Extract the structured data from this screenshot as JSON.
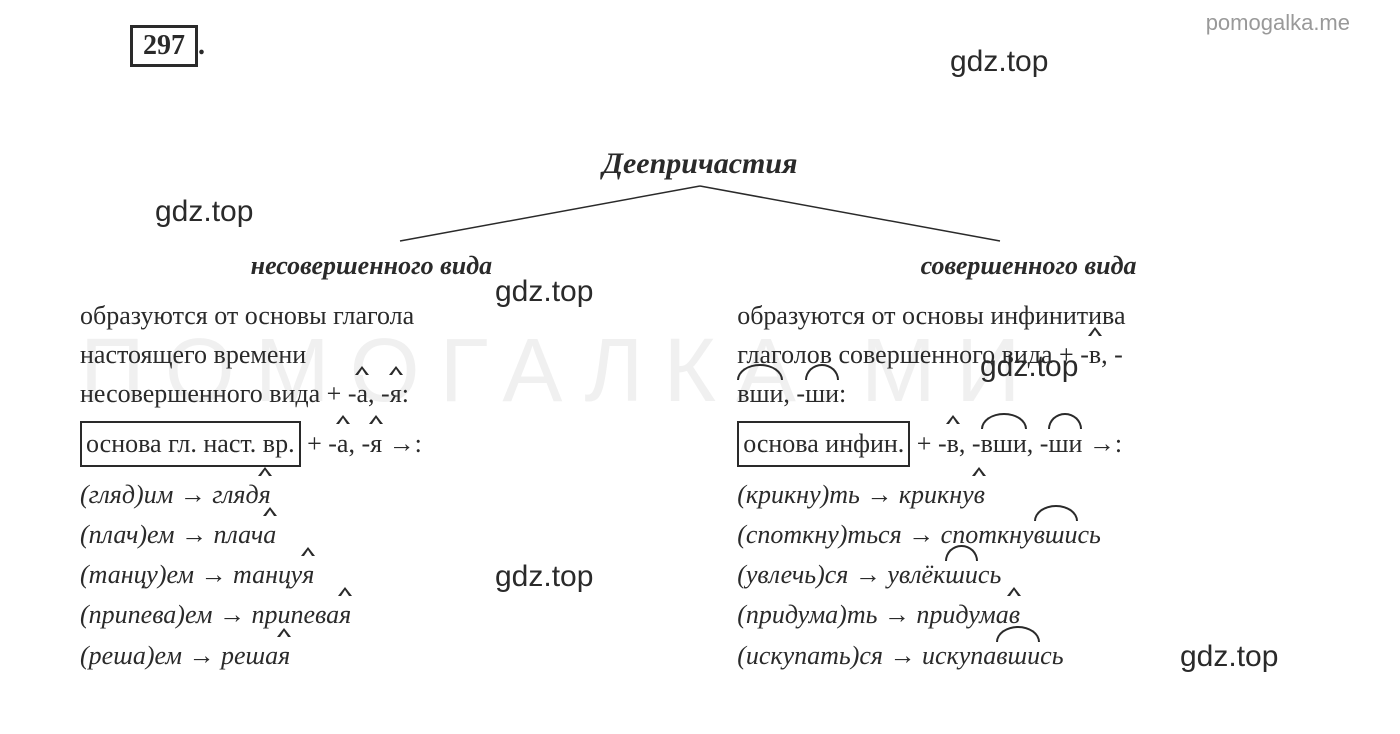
{
  "watermark_top": "pomogalka.me",
  "exercise_number": "297",
  "title": "Деепричастия",
  "overlay_texts": [
    "gdz.top",
    "gdz.top",
    "gdz.top",
    "gdz.top",
    "gdz.top",
    "gdz.top"
  ],
  "bg_watermark": "ПОМОГАЛКА.МИ",
  "left_column": {
    "title": "несовершенного вида",
    "desc_line1": "образуются от основы глагола",
    "desc_line2": "настоящего времени",
    "desc_line3_part1": "несовершенного вида + -",
    "desc_line3_suffix1": "а",
    "desc_line3_part2": ", -",
    "desc_line3_suffix2": "я",
    "desc_line3_part3": ":",
    "formula_boxed": "основа гл. наст. вр.",
    "formula_part1": " + -",
    "formula_suffix1": "а",
    "formula_part2": ", -",
    "formula_suffix2": "я",
    "formula_part3": " →:",
    "examples": [
      {
        "base": "(гляд)им → гляд",
        "suffix": "я",
        "tail": ""
      },
      {
        "base": "(плач)ем → плач",
        "suffix": "а",
        "tail": ""
      },
      {
        "base": "(танцу)ем → танцу",
        "suffix": "я",
        "tail": ""
      },
      {
        "base": "(припева)ем → припева",
        "suffix": "я",
        "tail": ""
      },
      {
        "base": "(реша)ем → реша",
        "suffix": "я",
        "tail": ""
      }
    ]
  },
  "right_column": {
    "title": "совершенного вида",
    "desc_line1": "образуются от основы инфинитива",
    "desc_line2_part1": "глаголов совершенного вида + -",
    "desc_line2_suffix1": "в",
    "desc_line2_part2": ", -",
    "desc_line3_suffix1": "вши",
    "desc_line3_part1": ", -",
    "desc_line3_suffix2": "ши",
    "desc_line3_part2": ":",
    "formula_boxed": "основа инфин.",
    "formula_part1": " + -",
    "formula_suffix1": "в",
    "formula_part2": ", -",
    "formula_suffix2": "вши",
    "formula_part3": ", -",
    "formula_suffix3": "ши",
    "formula_part4": " →:",
    "examples": [
      {
        "base": "(крикну)ть → крикну",
        "suffix": "в",
        "arc": false,
        "tail": ""
      },
      {
        "base": "(споткну)ться → споткну",
        "suffix": "вши",
        "arc": true,
        "tail": "сь"
      },
      {
        "base": "(увлечь)ся → увлёк",
        "suffix": "ши",
        "arc": true,
        "tail": "сь"
      },
      {
        "base": "(придума)ть → придума",
        "suffix": "в",
        "arc": false,
        "tail": ""
      },
      {
        "base": "(искупать)ся → искупа",
        "suffix": "вши",
        "arc": true,
        "tail": "сь"
      }
    ]
  },
  "colors": {
    "text": "#2a2a2a",
    "watermark": "#999999",
    "bg_watermark": "#f0f0f0",
    "background": "#ffffff"
  }
}
